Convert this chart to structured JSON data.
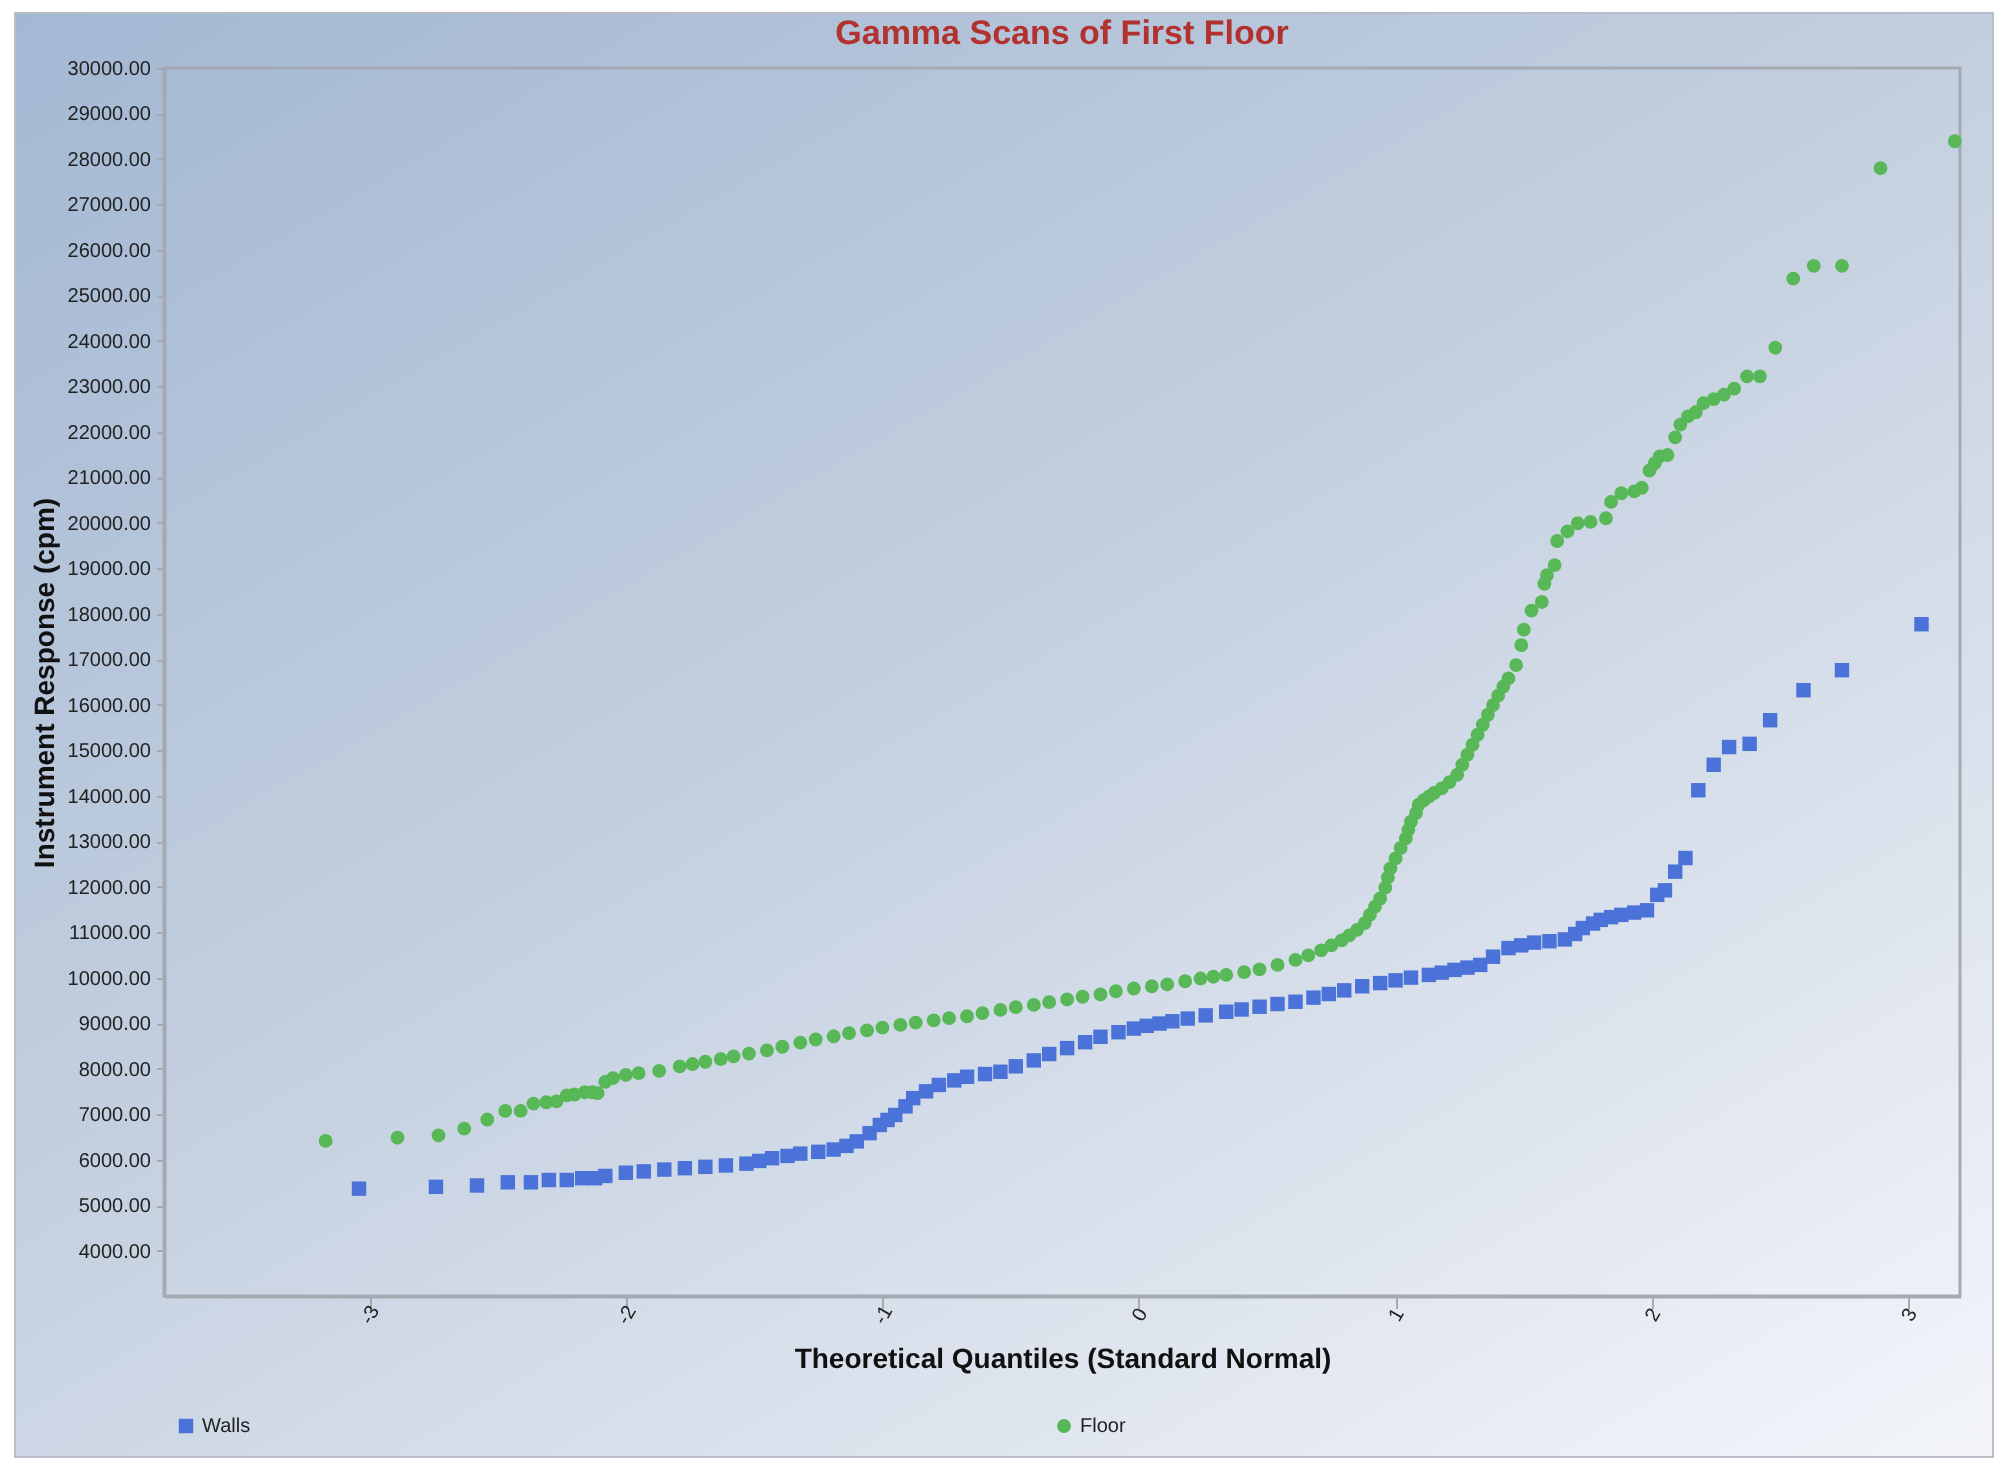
{
  "chart_data": {
    "type": "scatter",
    "title": "Gamma Scans of First Floor",
    "xlabel": "Theoretical Quantiles (Standard Normal)",
    "ylabel": "Instrument Response (cpm)",
    "xlim": [
      -3.8,
      3.2
    ],
    "xticks": [
      -3,
      -2,
      -1,
      0,
      1,
      2,
      3
    ],
    "ylim": [
      3000,
      30000
    ],
    "yticks": [
      {
        "value": 4000,
        "label": "4000.00"
      },
      {
        "value": 5000,
        "label": "5000.00"
      },
      {
        "value": 6000,
        "label": "6000.00"
      },
      {
        "value": 7000,
        "label": "7000.00"
      },
      {
        "value": 8000,
        "label": "8000.00"
      },
      {
        "value": 9000,
        "label": "9000.00"
      },
      {
        "value": 10000,
        "label": "10000.00"
      },
      {
        "value": 11000,
        "label": "11000.00"
      },
      {
        "value": 12000,
        "label": "12000.00"
      },
      {
        "value": 13000,
        "label": "13000.00"
      },
      {
        "value": 14000,
        "label": "14000.00"
      },
      {
        "value": 15000,
        "label": "15000.00"
      },
      {
        "value": 16000,
        "label": "16000.00"
      },
      {
        "value": 17000,
        "label": "17000.00"
      },
      {
        "value": 18000,
        "label": "18000.00"
      },
      {
        "value": 19000,
        "label": "19000.00"
      },
      {
        "value": 20000,
        "label": "20000.00"
      },
      {
        "value": 21000,
        "label": "21000.00"
      },
      {
        "value": 22000,
        "label": "22000.00"
      },
      {
        "value": 23000,
        "label": "23000.00"
      },
      {
        "value": 24000,
        "label": "24000.00"
      },
      {
        "value": 25000,
        "label": "25000.00"
      },
      {
        "value": 26000,
        "label": "26000.00"
      },
      {
        "value": 27000,
        "label": "27000.00"
      },
      {
        "value": 28000,
        "label": "28000.00"
      },
      {
        "value": 29000,
        "label": "29000.00"
      },
      {
        "value": 30000,
        "label": "30000.00"
      }
    ],
    "legend": "bottom",
    "series": [
      {
        "name": "Walls",
        "color": "#4a72d8",
        "marker": "square",
        "x": [
          -3.04,
          -2.74,
          -2.58,
          -2.46,
          -2.37,
          -2.3,
          -2.23,
          -2.17,
          -2.12,
          -2.08,
          -2.0,
          -1.93,
          -1.85,
          -1.77,
          -1.69,
          -1.61,
          -1.53,
          -1.48,
          -1.43,
          -1.37,
          -1.32,
          -1.25,
          -1.19,
          -1.14,
          -1.1,
          -1.05,
          -1.01,
          -0.98,
          -0.95,
          -0.91,
          -0.88,
          -0.83,
          -0.78,
          -0.72,
          -0.67,
          -0.6,
          -0.54,
          -0.48,
          -0.41,
          -0.35,
          -0.28,
          -0.21,
          -0.15,
          -0.08,
          -0.02,
          0.03,
          0.08,
          0.13,
          0.19,
          0.26,
          0.34,
          0.4,
          0.47,
          0.54,
          0.61,
          0.68,
          0.74,
          0.8,
          0.87,
          0.94,
          1.0,
          1.06,
          1.13,
          1.18,
          1.23,
          1.28,
          1.33,
          1.38,
          1.44,
          1.49,
          1.54,
          1.6,
          1.66,
          1.7,
          1.73,
          1.77,
          1.8,
          1.84,
          1.88,
          1.93,
          1.98,
          2.02,
          2.05,
          2.09,
          2.13,
          2.18,
          2.24,
          2.3,
          2.38,
          2.46,
          2.59,
          2.74,
          3.05
        ],
        "values": [
          5360,
          5400,
          5430,
          5500,
          5500,
          5550,
          5550,
          5590,
          5590,
          5640,
          5710,
          5740,
          5780,
          5810,
          5840,
          5870,
          5910,
          5970,
          6030,
          6080,
          6130,
          6170,
          6220,
          6300,
          6400,
          6580,
          6760,
          6870,
          6980,
          7170,
          7350,
          7500,
          7640,
          7740,
          7820,
          7880,
          7930,
          8050,
          8180,
          8320,
          8450,
          8580,
          8700,
          8800,
          8880,
          8940,
          8990,
          9040,
          9100,
          9170,
          9250,
          9300,
          9360,
          9420,
          9470,
          9560,
          9640,
          9720,
          9810,
          9880,
          9940,
          10000,
          10060,
          10110,
          10170,
          10220,
          10280,
          10460,
          10650,
          10710,
          10770,
          10800,
          10840,
          10960,
          11090,
          11190,
          11270,
          11330,
          11380,
          11430,
          11480,
          11820,
          11920,
          12330,
          12630,
          14120,
          14680,
          15070,
          15140,
          15660,
          16320,
          16760,
          17770
        ]
      },
      {
        "name": "Floor",
        "color": "#58b858",
        "marker": "circle",
        "x": [
          -3.17,
          -2.89,
          -2.73,
          -2.63,
          -2.54,
          -2.47,
          -2.41,
          -2.36,
          -2.31,
          -2.27,
          -2.23,
          -2.2,
          -2.16,
          -2.13,
          -2.11,
          -2.08,
          -2.05,
          -2.0,
          -1.95,
          -1.87,
          -1.79,
          -1.74,
          -1.69,
          -1.63,
          -1.58,
          -1.52,
          -1.45,
          -1.39,
          -1.32,
          -1.26,
          -1.19,
          -1.13,
          -1.06,
          -1.0,
          -0.93,
          -0.87,
          -0.8,
          -0.74,
          -0.67,
          -0.61,
          -0.54,
          -0.48,
          -0.41,
          -0.35,
          -0.28,
          -0.22,
          -0.15,
          -0.09,
          -0.02,
          0.05,
          0.11,
          0.18,
          0.24,
          0.29,
          0.34,
          0.41,
          0.47,
          0.54,
          0.61,
          0.66,
          0.71,
          0.75,
          0.79,
          0.82,
          0.85,
          0.88,
          0.9,
          0.92,
          0.94,
          0.96,
          0.97,
          0.98,
          1.0,
          1.02,
          1.04,
          1.05,
          1.06,
          1.08,
          1.09,
          1.11,
          1.13,
          1.15,
          1.18,
          1.21,
          1.24,
          1.26,
          1.28,
          1.3,
          1.32,
          1.34,
          1.36,
          1.38,
          1.4,
          1.42,
          1.44,
          1.47,
          1.49,
          1.5,
          1.53,
          1.57,
          1.58,
          1.59,
          1.62,
          1.63,
          1.67,
          1.71,
          1.76,
          1.82,
          1.84,
          1.88,
          1.93,
          1.96,
          1.99,
          2.01,
          2.03,
          2.06,
          2.09,
          2.11,
          2.14,
          2.17,
          2.2,
          2.24,
          2.28,
          2.32,
          2.37,
          2.42,
          2.48,
          2.55,
          2.63,
          2.74,
          2.89,
          3.18
        ],
        "values": [
          6410,
          6480,
          6530,
          6680,
          6880,
          7070,
          7070,
          7230,
          7260,
          7280,
          7410,
          7430,
          7480,
          7480,
          7460,
          7710,
          7790,
          7860,
          7900,
          7950,
          8050,
          8100,
          8150,
          8210,
          8270,
          8330,
          8400,
          8480,
          8570,
          8640,
          8710,
          8780,
          8840,
          8900,
          8960,
          9010,
          9060,
          9110,
          9150,
          9220,
          9290,
          9350,
          9400,
          9460,
          9520,
          9580,
          9630,
          9700,
          9760,
          9810,
          9850,
          9920,
          9980,
          10020,
          10060,
          10120,
          10180,
          10280,
          10390,
          10490,
          10600,
          10710,
          10820,
          10930,
          11050,
          11200,
          11380,
          11560,
          11740,
          11980,
          12200,
          12400,
          12620,
          12850,
          13060,
          13250,
          13430,
          13620,
          13800,
          13900,
          13980,
          14060,
          14160,
          14300,
          14460,
          14680,
          14900,
          15120,
          15340,
          15560,
          15780,
          15990,
          16200,
          16400,
          16580,
          16870,
          17310,
          17650,
          18070,
          18260,
          18660,
          18850,
          19070,
          19600,
          19810,
          19990,
          20020,
          20100,
          20460,
          20650,
          20690,
          20770,
          21150,
          21310,
          21460,
          21490,
          21880,
          22160,
          22340,
          22430,
          22630,
          22720,
          22820,
          22950,
          23220,
          23220,
          23850,
          25370,
          25650,
          25650,
          27800,
          28390
        ]
      }
    ]
  }
}
